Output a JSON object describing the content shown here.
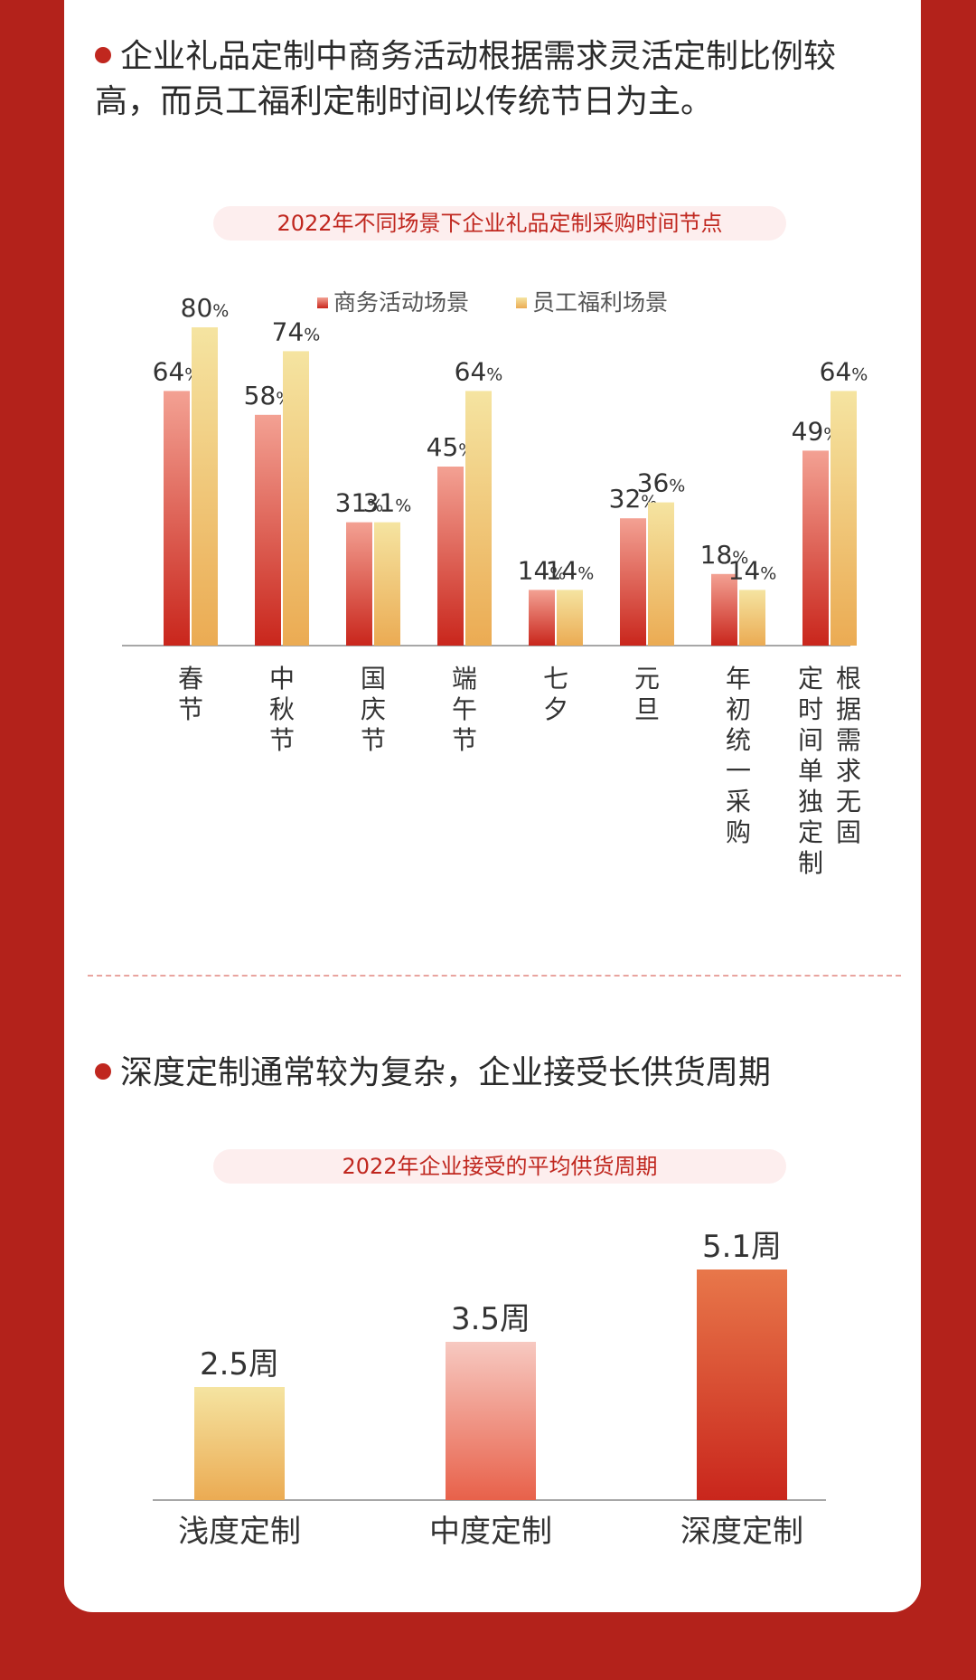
{
  "section1": {
    "title": "企业礼品定制中商务活动根据需求灵活定制比例较高，而员工福利定制时间以传统节日为主。"
  },
  "chart1": {
    "title_pill": "2022年不同场景下企业礼品定制采购时间节点"
  },
  "section2": {
    "title": "深度定制通常较为复杂，企业接受长供货周期"
  },
  "chart2": {
    "title_pill": "2022年企业接受的平均供货周期"
  },
  "colors": {
    "background": "#b3221b",
    "accent": "#c0271f",
    "biz_top": "#f3a193",
    "biz_bottom": "#c9261c",
    "emp_top": "#f5e4a1",
    "emp_bottom": "#ebab53"
  },
  "chart_data": [
    {
      "type": "bar",
      "title": "2022年不同场景下企业礼品定制采购时间节点",
      "categories": [
        "春节",
        "中秋节",
        "国庆节",
        "端午节",
        "七夕",
        "元旦",
        "年初统一采购",
        "根据需求无固定时间单独定制"
      ],
      "series": [
        {
          "name": "商务活动场景",
          "values": [
            64,
            58,
            31,
            45,
            14,
            32,
            18,
            49
          ]
        },
        {
          "name": "员工福利场景",
          "values": [
            80,
            74,
            31,
            64,
            14,
            36,
            14,
            64
          ]
        }
      ],
      "unit": "%",
      "ylim": [
        0,
        100
      ],
      "legend": "top-center",
      "grid": false
    },
    {
      "type": "bar",
      "title": "2022年企业接受的平均供货周期",
      "categories": [
        "浅度定制",
        "中度定制",
        "深度定制"
      ],
      "values": [
        2.5,
        3.5,
        5.1
      ],
      "unit": "周",
      "ylim": [
        0,
        6
      ],
      "grid": false
    }
  ]
}
